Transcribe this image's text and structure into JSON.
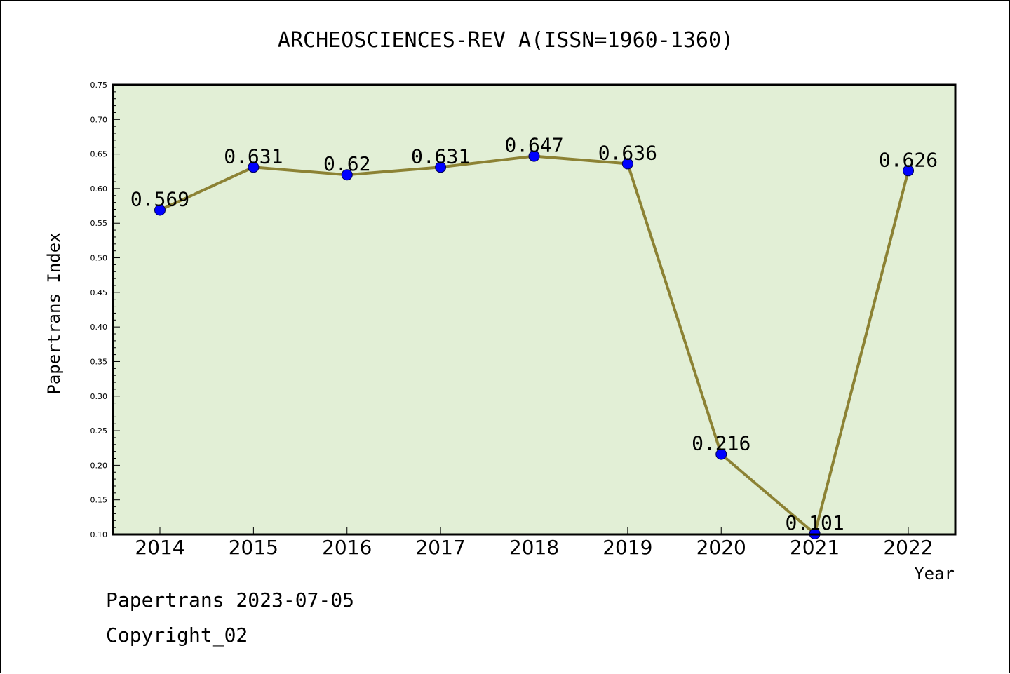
{
  "chart_data": {
    "type": "line",
    "title": "ARCHEOSCIENCES-REV A(ISSN=1960-1360)",
    "xlabel": "Year",
    "ylabel": "Papertrans Index",
    "categories": [
      "2014",
      "2015",
      "2016",
      "2017",
      "2018",
      "2019",
      "2020",
      "2021",
      "2022"
    ],
    "values": [
      0.569,
      0.631,
      0.62,
      0.631,
      0.647,
      0.636,
      0.216,
      0.101,
      0.626
    ],
    "data_labels": [
      "0.569",
      "0.631",
      "0.62",
      "0.631",
      "0.647",
      "0.636",
      "0.216",
      "0.101",
      "0.626"
    ],
    "ylim": [
      0.1,
      0.75
    ],
    "yticks": [
      "0.10",
      "0.15",
      "0.20",
      "0.25",
      "0.30",
      "0.35",
      "0.40",
      "0.45",
      "0.50",
      "0.55",
      "0.60",
      "0.65",
      "0.70",
      "0.75"
    ],
    "grid": false,
    "legend": "none",
    "colors": {
      "plot_background": "#e2efd6",
      "line": "#8c8234",
      "marker": "#0000ff"
    }
  },
  "footer": {
    "line1": "Papertrans 2023-07-05",
    "line2": "Copyright_02"
  }
}
